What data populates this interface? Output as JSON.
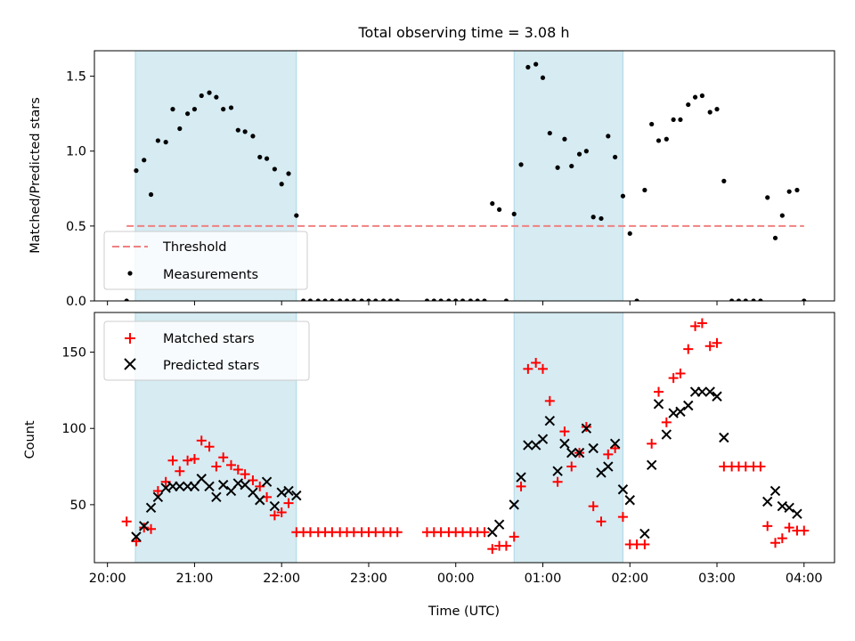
{
  "chart_data": [
    {
      "type": "scatter",
      "panel": "top",
      "title": "Total observing time = 3.08 h",
      "ylabel": "Matched/Predicted stars",
      "xlabel": "",
      "ylim": [
        0,
        1.67
      ],
      "yticks": [
        0.0,
        0.5,
        1.0,
        1.5
      ],
      "ytick_labels": [
        "0.0",
        "0.5",
        "1.0",
        "1.5"
      ],
      "threshold": {
        "name": "Threshold",
        "value": 0.5,
        "x_start": 0.22,
        "x_end": 8.0,
        "color": "#f08080"
      },
      "shaded_intervals": [
        [
          0.32,
          2.17
        ],
        [
          4.67,
          5.92
        ]
      ],
      "series": [
        {
          "name": "Measurements",
          "color": "#000000",
          "x": [
            0.22,
            0.33,
            0.42,
            0.5,
            0.58,
            0.67,
            0.75,
            0.83,
            0.92,
            1.0,
            1.08,
            1.17,
            1.25,
            1.33,
            1.42,
            1.5,
            1.58,
            1.67,
            1.75,
            1.83,
            1.92,
            2.0,
            2.08,
            2.17,
            2.25,
            2.33,
            2.42,
            2.5,
            2.58,
            2.67,
            2.75,
            2.83,
            2.92,
            3.0,
            3.08,
            3.17,
            3.25,
            3.33,
            3.67,
            3.75,
            3.83,
            3.92,
            4.0,
            4.08,
            4.17,
            4.25,
            4.33,
            4.42,
            4.5,
            4.58,
            4.67,
            4.75,
            4.83,
            4.92,
            5.0,
            5.08,
            5.17,
            5.25,
            5.33,
            5.42,
            5.5,
            5.58,
            5.67,
            5.75,
            5.83,
            5.92,
            6.0,
            6.08,
            6.17,
            6.25,
            6.33,
            6.42,
            6.5,
            6.58,
            6.67,
            6.75,
            6.83,
            6.92,
            7.0,
            7.08,
            7.17,
            7.25,
            7.33,
            7.42,
            7.5,
            7.58,
            7.67,
            7.75,
            7.83,
            7.92,
            8.0
          ],
          "y": [
            0.0,
            0.87,
            0.94,
            0.71,
            1.07,
            1.06,
            1.28,
            1.15,
            1.25,
            1.28,
            1.37,
            1.39,
            1.36,
            1.28,
            1.29,
            1.14,
            1.13,
            1.1,
            0.96,
            0.95,
            0.88,
            0.78,
            0.85,
            0.57,
            0.0,
            0.0,
            0.0,
            0.0,
            0.0,
            0.0,
            0.0,
            0.0,
            0.0,
            0.0,
            0.0,
            0.0,
            0.0,
            0.0,
            0.0,
            0.0,
            0.0,
            0.0,
            0.0,
            0.0,
            0.0,
            0.0,
            0.0,
            0.65,
            0.61,
            0.0,
            0.58,
            0.91,
            1.56,
            1.58,
            1.49,
            1.12,
            0.89,
            1.08,
            0.9,
            0.98,
            1.0,
            0.56,
            0.55,
            1.1,
            0.96,
            0.7,
            0.45,
            0.0,
            0.74,
            1.18,
            1.07,
            1.08,
            1.21,
            1.21,
            1.31,
            1.36,
            1.37,
            1.26,
            1.28,
            0.8,
            0.0,
            0.0,
            0.0,
            0.0,
            0.0,
            0.69,
            0.42,
            0.57,
            0.73,
            0.74,
            0.0
          ]
        }
      ],
      "legend": {
        "placement": "lower-left",
        "entries": [
          "Threshold",
          "Measurements"
        ]
      }
    },
    {
      "type": "scatter",
      "panel": "bottom",
      "xlabel": "Time (UTC)",
      "ylabel": "Count",
      "ylim": [
        12,
        176
      ],
      "yticks": [
        50,
        100,
        150
      ],
      "ytick_labels": [
        "50",
        "100",
        "150"
      ],
      "xlim": [
        -0.15,
        8.35
      ],
      "xticks": [
        0,
        1,
        2,
        3,
        4,
        5,
        6,
        7,
        8
      ],
      "xtick_labels": [
        "20:00",
        "21:00",
        "22:00",
        "23:00",
        "00:00",
        "01:00",
        "02:00",
        "03:00",
        "04:00"
      ],
      "shaded_intervals": [
        [
          0.32,
          2.17
        ],
        [
          4.67,
          5.92
        ]
      ],
      "series": [
        {
          "name": "Matched stars",
          "marker": "plus",
          "color": "#ff0000",
          "x": [
            0.22,
            0.33,
            0.42,
            0.5,
            0.58,
            0.67,
            0.75,
            0.83,
            0.92,
            1.0,
            1.08,
            1.17,
            1.25,
            1.33,
            1.42,
            1.5,
            1.58,
            1.67,
            1.75,
            1.83,
            1.92,
            2.0,
            2.08,
            2.17,
            2.25,
            2.33,
            2.42,
            2.5,
            2.58,
            2.67,
            2.75,
            2.83,
            2.92,
            3.0,
            3.08,
            3.17,
            3.25,
            3.33,
            3.67,
            3.75,
            3.83,
            3.92,
            4.0,
            4.08,
            4.17,
            4.25,
            4.33,
            4.42,
            4.5,
            4.58,
            4.67,
            4.75,
            4.83,
            4.92,
            5.0,
            5.08,
            5.17,
            5.25,
            5.33,
            5.42,
            5.5,
            5.58,
            5.67,
            5.75,
            5.83,
            5.92,
            6.0,
            6.08,
            6.17,
            6.25,
            6.33,
            6.42,
            6.5,
            6.58,
            6.67,
            6.75,
            6.83,
            6.92,
            7.0,
            7.08,
            7.17,
            7.25,
            7.33,
            7.42,
            7.5,
            7.58,
            7.67,
            7.75,
            7.83,
            7.92,
            8.0
          ],
          "y": [
            39,
            26,
            35,
            34,
            59,
            65,
            79,
            72,
            79,
            80,
            92,
            88,
            75,
            81,
            76,
            73,
            70,
            66,
            62,
            55,
            43,
            45,
            51,
            32,
            32,
            32,
            32,
            32,
            32,
            32,
            32,
            32,
            32,
            32,
            32,
            32,
            32,
            32,
            32,
            32,
            32,
            32,
            32,
            32,
            32,
            32,
            32,
            21,
            23,
            23,
            29,
            62,
            139,
            143,
            139,
            118,
            65,
            98,
            75,
            84,
            101,
            49,
            39,
            83,
            87,
            42,
            24,
            24,
            24,
            90,
            124,
            104,
            133,
            136,
            152,
            167,
            169,
            154,
            156,
            75,
            75,
            75,
            75,
            75,
            75,
            36,
            25,
            28,
            35,
            33,
            33
          ]
        },
        {
          "name": "Predicted stars",
          "marker": "x",
          "color": "#000000",
          "x": [
            0.33,
            0.42,
            0.5,
            0.58,
            0.67,
            0.75,
            0.83,
            0.92,
            1.0,
            1.08,
            1.17,
            1.25,
            1.33,
            1.42,
            1.5,
            1.58,
            1.67,
            1.75,
            1.83,
            1.92,
            2.0,
            2.08,
            2.17,
            4.42,
            4.5,
            4.67,
            4.75,
            4.83,
            4.92,
            5.0,
            5.08,
            5.17,
            5.25,
            5.33,
            5.42,
            5.5,
            5.58,
            5.67,
            5.75,
            5.83,
            5.92,
            6.0,
            6.17,
            6.25,
            6.33,
            6.42,
            6.5,
            6.58,
            6.67,
            6.75,
            6.83,
            6.92,
            7.0,
            7.08,
            7.58,
            7.67,
            7.75,
            7.83,
            7.92
          ],
          "y": [
            29,
            36,
            48,
            55,
            61,
            62,
            62,
            62,
            62,
            67,
            62,
            55,
            63,
            59,
            64,
            63,
            58,
            53,
            65,
            49,
            58,
            59,
            56,
            32,
            37,
            50,
            68,
            89,
            89,
            93,
            105,
            72,
            90,
            84,
            84,
            100,
            87,
            71,
            75,
            90,
            60,
            53,
            31,
            76,
            116,
            96,
            110,
            111,
            115,
            124,
            124,
            124,
            121,
            94,
            52,
            59,
            49,
            48,
            44
          ]
        }
      ],
      "legend": {
        "placement": "upper-left",
        "entries": [
          "Matched stars",
          "Predicted stars"
        ]
      }
    }
  ]
}
